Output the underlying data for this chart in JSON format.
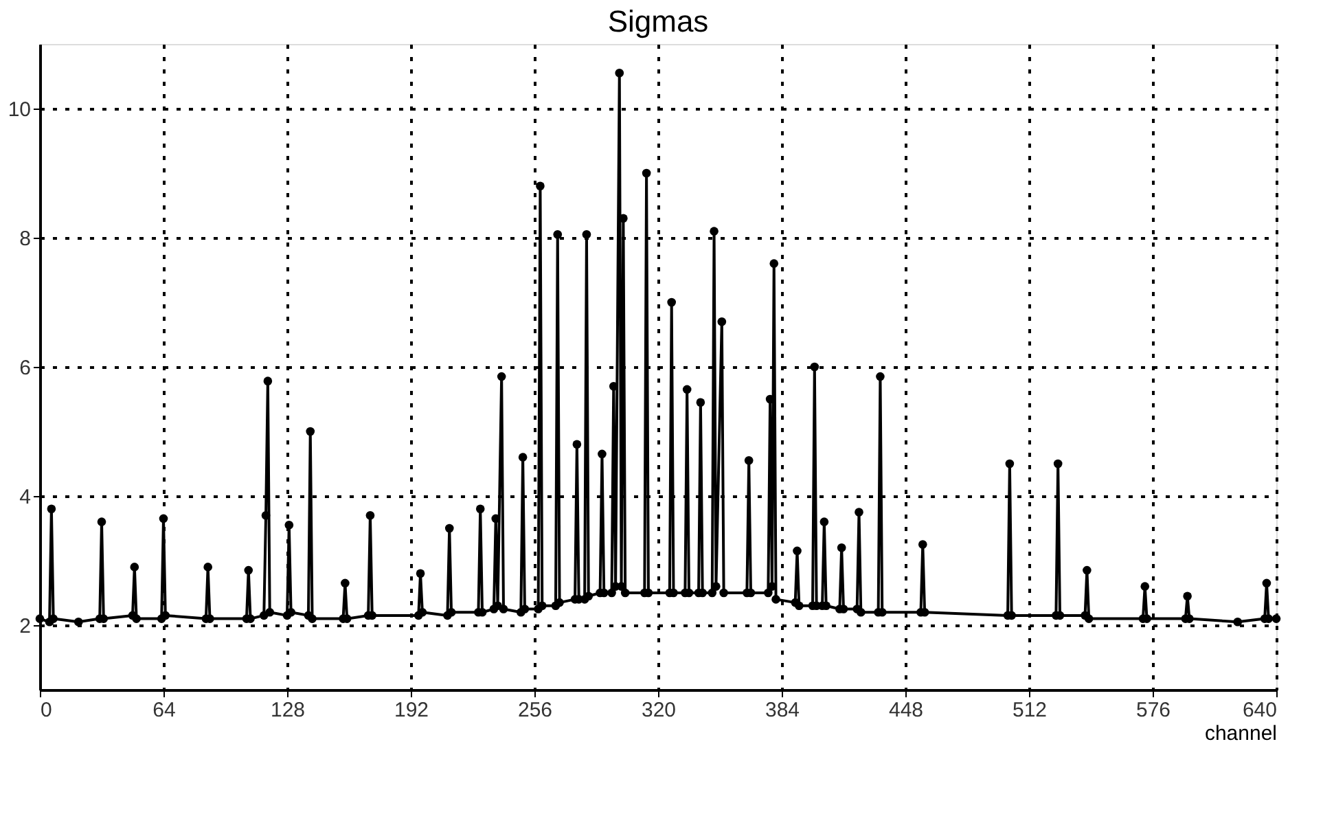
{
  "chart_data": {
    "type": "line",
    "title": "Sigmas",
    "xlabel": "channel",
    "xlim": [
      0,
      640
    ],
    "xticks": [
      0,
      64,
      128,
      192,
      256,
      320,
      384,
      448,
      512,
      576,
      640
    ],
    "ylim": [
      1,
      11
    ],
    "yticks": [
      2,
      4,
      6,
      8,
      10
    ],
    "grid": true,
    "marker": "circle",
    "line_style": "solid",
    "series": [
      {
        "color": "#000000",
        "x": [
          0,
          5,
          6,
          7,
          20,
          31,
          32,
          33,
          48,
          49,
          50,
          63,
          64,
          65,
          86,
          87,
          88,
          107,
          108,
          109,
          116,
          117,
          118,
          119,
          128,
          129,
          130,
          139,
          140,
          141,
          157,
          158,
          159,
          170,
          171,
          172,
          196,
          197,
          198,
          211,
          212,
          213,
          227,
          228,
          229,
          235,
          236,
          237,
          239,
          240,
          249,
          250,
          251,
          258,
          259,
          260,
          267,
          268,
          269,
          277,
          278,
          279,
          282,
          283,
          284,
          290,
          291,
          292,
          296,
          297,
          298,
          300,
          301,
          302,
          303,
          313,
          314,
          315,
          326,
          327,
          328,
          334,
          335,
          336,
          341,
          342,
          343,
          348,
          349,
          350,
          353,
          354,
          366,
          367,
          368,
          377,
          378,
          379,
          380,
          381,
          391,
          392,
          393,
          400,
          401,
          402,
          405,
          406,
          407,
          414,
          415,
          416,
          423,
          424,
          425,
          434,
          435,
          436,
          456,
          457,
          458,
          501,
          502,
          503,
          526,
          527,
          528,
          541,
          542,
          543,
          571,
          572,
          573,
          593,
          594,
          595,
          620,
          634,
          635,
          636,
          640
        ],
        "values": [
          2.1,
          2.05,
          3.8,
          2.1,
          2.05,
          2.1,
          3.6,
          2.1,
          2.15,
          2.9,
          2.1,
          2.1,
          3.65,
          2.15,
          2.1,
          2.9,
          2.1,
          2.1,
          2.85,
          2.1,
          2.15,
          3.7,
          5.78,
          2.2,
          2.15,
          3.55,
          2.2,
          2.15,
          5.0,
          2.1,
          2.1,
          2.65,
          2.1,
          2.15,
          3.7,
          2.15,
          2.15,
          2.8,
          2.2,
          2.15,
          3.5,
          2.2,
          2.2,
          3.8,
          2.2,
          2.25,
          3.65,
          2.3,
          5.85,
          2.25,
          2.2,
          4.6,
          2.25,
          2.25,
          8.8,
          2.3,
          2.3,
          8.05,
          2.35,
          2.4,
          4.8,
          2.4,
          2.4,
          8.05,
          2.45,
          2.5,
          4.65,
          2.5,
          2.5,
          5.7,
          2.6,
          10.55,
          2.6,
          8.3,
          2.5,
          2.5,
          9.0,
          2.5,
          2.5,
          7.0,
          2.5,
          2.5,
          5.65,
          2.5,
          2.5,
          5.45,
          2.5,
          2.5,
          8.1,
          2.6,
          6.7,
          2.5,
          2.5,
          4.55,
          2.5,
          2.5,
          5.5,
          2.6,
          7.6,
          2.4,
          2.35,
          3.15,
          2.3,
          2.3,
          6.0,
          2.3,
          2.3,
          3.6,
          2.3,
          2.25,
          3.2,
          2.25,
          2.25,
          3.75,
          2.2,
          2.2,
          5.85,
          2.2,
          2.2,
          3.25,
          2.2,
          2.15,
          4.5,
          2.15,
          2.15,
          4.5,
          2.15,
          2.15,
          2.85,
          2.1,
          2.1,
          2.6,
          2.1,
          2.1,
          2.45,
          2.1,
          2.05,
          2.1,
          2.65,
          2.1,
          2.1
        ]
      }
    ]
  }
}
